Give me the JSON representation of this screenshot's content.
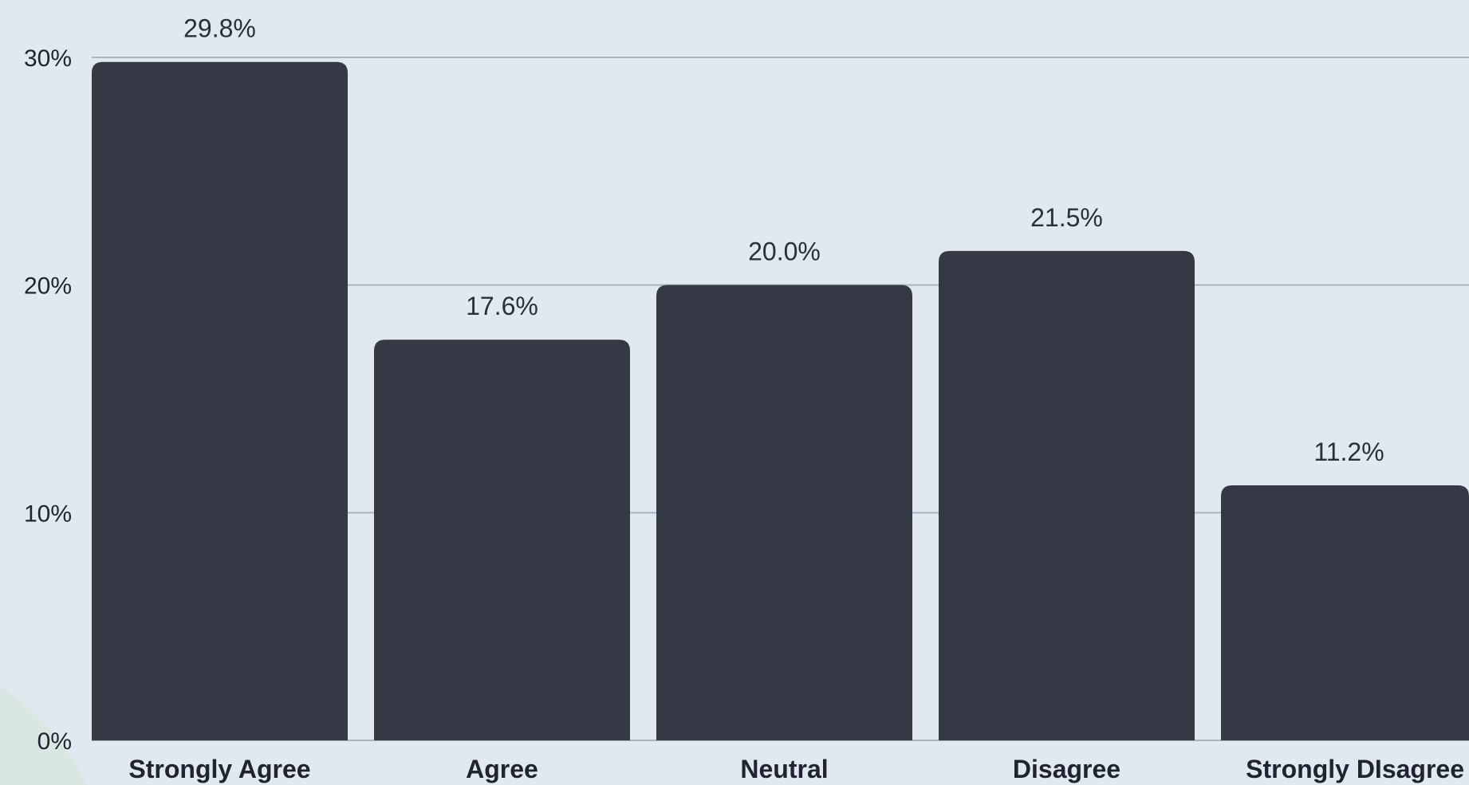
{
  "chart_data": {
    "type": "bar",
    "categories": [
      "Strongly Agree",
      "Agree",
      "Neutral",
      "Disagree",
      "Strongly DIsagree"
    ],
    "values": [
      29.8,
      17.6,
      20.0,
      21.5,
      11.2
    ],
    "data_labels": [
      "29.8%",
      "17.6%",
      "20.0%",
      "21.5%",
      "11.2%"
    ],
    "ylim": [
      0,
      30
    ],
    "yticks": [
      0,
      10,
      20,
      30
    ],
    "ytick_labels": [
      "0%",
      "10%",
      "20%",
      "30%"
    ],
    "grid": true,
    "title": "",
    "xlabel": "",
    "ylabel": ""
  },
  "colors": {
    "background": "#e1e8f0",
    "bar": "#343945",
    "grid": "#a9b2bf"
  }
}
